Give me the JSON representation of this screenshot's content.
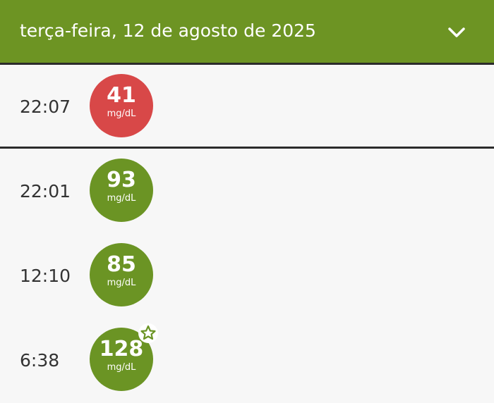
{
  "header": {
    "title": "terça-feira, 12 de agosto de 2025"
  },
  "readings": [
    {
      "time": "22:07",
      "value": 41,
      "unit": "mg/dL"
    },
    {
      "time": "22:01",
      "value": 93,
      "unit": "mg/dL"
    },
    {
      "time": "12:10",
      "value": 85,
      "unit": "mg/dL"
    },
    {
      "time": "6:38",
      "value": 128,
      "unit": "mg/dL"
    }
  ]
}
